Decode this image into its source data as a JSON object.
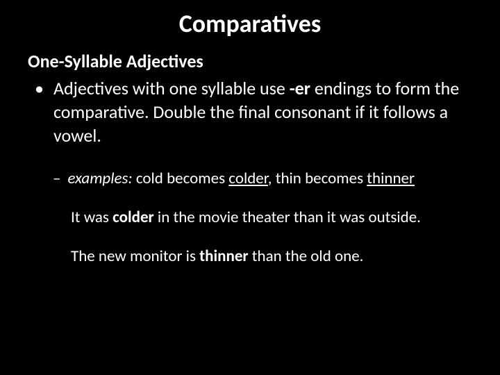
{
  "title": "Comparatives",
  "subtitle": "One-Syllable Adjectives",
  "bullet": {
    "part1": "Adjectives with one syllable use ",
    "bold1": "-er",
    "part2": " endings to form the comparative. Double the final consonant if it follows a vowel."
  },
  "examples": {
    "label": "examples:",
    "t1": " cold becomes ",
    "u1": "colder",
    "t2": ", thin becomes ",
    "u2": "thinner"
  },
  "sentence1": {
    "t1": "It was ",
    "b1": "colder",
    "t2": " in the movie theater than it was outside."
  },
  "sentence2": {
    "t1": "The new monitor is ",
    "b1": "thinner",
    "t2": " than the old one."
  },
  "colors": {
    "background": "#000000",
    "text": "#ffffff"
  }
}
